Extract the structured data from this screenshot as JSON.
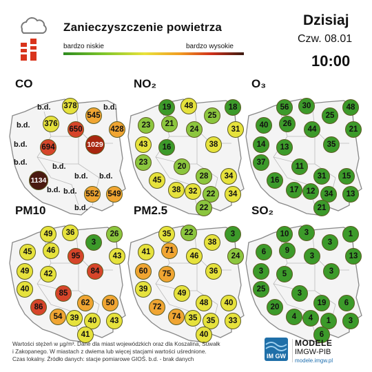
{
  "header": {
    "title": "Zanieczyszczenie powietrza",
    "scale_low": "bardzo niskie",
    "scale_high": "bardzo wysokie",
    "today": "Dzisiaj",
    "date": "Czw. 08.01",
    "time": "10:00"
  },
  "panels": [
    {
      "key": "co",
      "title": "CO",
      "stations": [
        {
          "id": "szczecin",
          "value": "b.d."
        },
        {
          "id": "koszalin",
          "value": "b.d."
        },
        {
          "id": "gdansk",
          "value": "378"
        },
        {
          "id": "olsztyn",
          "value": "545"
        },
        {
          "id": "suwalki",
          "value": "b.d."
        },
        {
          "id": "bialystok",
          "value": "428"
        },
        {
          "id": "bydgoszcz",
          "value": "376"
        },
        {
          "id": "torun",
          "value": "650"
        },
        {
          "id": "gorzow",
          "value": "b.d."
        },
        {
          "id": "poznan",
          "value": "694"
        },
        {
          "id": "warszawa",
          "value": "1029"
        },
        {
          "id": "zielona",
          "value": "b.d."
        },
        {
          "id": "lodz",
          "value": "b.d."
        },
        {
          "id": "wroclaw",
          "value": "1134"
        },
        {
          "id": "opole",
          "value": "b.d."
        },
        {
          "id": "kielce",
          "value": "b.d."
        },
        {
          "id": "lublin",
          "value": "b.d."
        },
        {
          "id": "katowice",
          "value": "b.d."
        },
        {
          "id": "krakow",
          "value": "552"
        },
        {
          "id": "rzeszow",
          "value": "549"
        },
        {
          "id": "zakopane",
          "value": "b.d."
        }
      ]
    },
    {
      "key": "no2",
      "title": "NO₂",
      "stations": [
        {
          "id": "szczecin",
          "value": "23"
        },
        {
          "id": "koszalin",
          "value": "19"
        },
        {
          "id": "gdansk",
          "value": "48"
        },
        {
          "id": "olsztyn",
          "value": "25"
        },
        {
          "id": "suwalki",
          "value": "18"
        },
        {
          "id": "bialystok",
          "value": "31"
        },
        {
          "id": "bydgoszcz",
          "value": "21"
        },
        {
          "id": "torun",
          "value": "24"
        },
        {
          "id": "gorzow",
          "value": "43"
        },
        {
          "id": "poznan",
          "value": "16"
        },
        {
          "id": "warszawa",
          "value": "38"
        },
        {
          "id": "zielona",
          "value": "23"
        },
        {
          "id": "lodz",
          "value": "20"
        },
        {
          "id": "wroclaw",
          "value": "45"
        },
        {
          "id": "opole",
          "value": "38"
        },
        {
          "id": "kielce",
          "value": "28"
        },
        {
          "id": "lublin",
          "value": "34"
        },
        {
          "id": "katowice",
          "value": "32"
        },
        {
          "id": "krakow",
          "value": "22"
        },
        {
          "id": "rzeszow",
          "value": "34"
        },
        {
          "id": "zakopane",
          "value": "22"
        }
      ]
    },
    {
      "key": "o3",
      "title": "O₃",
      "stations": [
        {
          "id": "szczecin",
          "value": "40"
        },
        {
          "id": "koszalin",
          "value": "56"
        },
        {
          "id": "gdansk",
          "value": "30"
        },
        {
          "id": "olsztyn",
          "value": "25"
        },
        {
          "id": "suwalki",
          "value": "48"
        },
        {
          "id": "bialystok",
          "value": "21"
        },
        {
          "id": "bydgoszcz",
          "value": "26"
        },
        {
          "id": "torun",
          "value": "44"
        },
        {
          "id": "gorzow",
          "value": "14"
        },
        {
          "id": "poznan",
          "value": "13"
        },
        {
          "id": "warszawa",
          "value": "35"
        },
        {
          "id": "zielona",
          "value": "37"
        },
        {
          "id": "lodz",
          "value": "11"
        },
        {
          "id": "wroclaw",
          "value": "16"
        },
        {
          "id": "opole",
          "value": "17"
        },
        {
          "id": "kielce",
          "value": "31"
        },
        {
          "id": "lublin",
          "value": "15"
        },
        {
          "id": "katowice",
          "value": "12"
        },
        {
          "id": "krakow",
          "value": "34"
        },
        {
          "id": "rzeszow",
          "value": "13"
        },
        {
          "id": "zakopane",
          "value": "21"
        }
      ]
    },
    {
      "key": "pm10",
      "title": "PM10",
      "stations": [
        {
          "id": "szczecin",
          "value": "45"
        },
        {
          "id": "koszalin",
          "value": "49"
        },
        {
          "id": "gdansk",
          "value": "36"
        },
        {
          "id": "olsztyn",
          "value": "3"
        },
        {
          "id": "suwalki",
          "value": "26"
        },
        {
          "id": "bialystok",
          "value": "43"
        },
        {
          "id": "bydgoszcz",
          "value": "46"
        },
        {
          "id": "torun",
          "value": "95"
        },
        {
          "id": "gorzow",
          "value": "49"
        },
        {
          "id": "poznan",
          "value": "42"
        },
        {
          "id": "warszawa",
          "value": "84"
        },
        {
          "id": "zielona",
          "value": "40"
        },
        {
          "id": "lodz",
          "value": "85"
        },
        {
          "id": "wroclaw",
          "value": "86"
        },
        {
          "id": "opole",
          "value": "54"
        },
        {
          "id": "kielce",
          "value": "62"
        },
        {
          "id": "lublin",
          "value": "50"
        },
        {
          "id": "katowice",
          "value": "39"
        },
        {
          "id": "krakow",
          "value": "40"
        },
        {
          "id": "rzeszow",
          "value": "43"
        },
        {
          "id": "zakopane",
          "value": "41"
        }
      ]
    },
    {
      "key": "pm25",
      "title": "PM2.5",
      "stations": [
        {
          "id": "szczecin",
          "value": "41"
        },
        {
          "id": "koszalin",
          "value": "35"
        },
        {
          "id": "gdansk",
          "value": "22"
        },
        {
          "id": "olsztyn",
          "value": "38"
        },
        {
          "id": "suwalki",
          "value": "3"
        },
        {
          "id": "bialystok",
          "value": "24"
        },
        {
          "id": "bydgoszcz",
          "value": "71"
        },
        {
          "id": "torun",
          "value": "46"
        },
        {
          "id": "gorzow",
          "value": "60"
        },
        {
          "id": "poznan",
          "value": "75"
        },
        {
          "id": "warszawa",
          "value": "36"
        },
        {
          "id": "zielona",
          "value": "39"
        },
        {
          "id": "lodz",
          "value": "49"
        },
        {
          "id": "wroclaw",
          "value": "72"
        },
        {
          "id": "opole",
          "value": "74"
        },
        {
          "id": "kielce",
          "value": "48"
        },
        {
          "id": "lublin",
          "value": "40"
        },
        {
          "id": "katowice",
          "value": "35"
        },
        {
          "id": "krakow",
          "value": "35"
        },
        {
          "id": "rzeszow",
          "value": "33"
        },
        {
          "id": "zakopane",
          "value": "40"
        }
      ]
    },
    {
      "key": "so2",
      "title": "SO₂",
      "stations": [
        {
          "id": "szczecin",
          "value": "6"
        },
        {
          "id": "koszalin",
          "value": "10"
        },
        {
          "id": "gdansk",
          "value": "3"
        },
        {
          "id": "olsztyn",
          "value": "3"
        },
        {
          "id": "suwalki",
          "value": "1"
        },
        {
          "id": "bialystok",
          "value": "13"
        },
        {
          "id": "bydgoszcz",
          "value": "9"
        },
        {
          "id": "torun",
          "value": "3"
        },
        {
          "id": "gorzow",
          "value": "3"
        },
        {
          "id": "poznan",
          "value": "5"
        },
        {
          "id": "warszawa",
          "value": "3"
        },
        {
          "id": "zielona",
          "value": "25"
        },
        {
          "id": "lodz",
          "value": "3"
        },
        {
          "id": "wroclaw",
          "value": "20"
        },
        {
          "id": "opole",
          "value": "4"
        },
        {
          "id": "kielce",
          "value": "19"
        },
        {
          "id": "lublin",
          "value": "6"
        },
        {
          "id": "katowice",
          "value": "4"
        },
        {
          "id": "krakow",
          "value": "1"
        },
        {
          "id": "rzeszow",
          "value": "3"
        },
        {
          "id": "zakopane",
          "value": "6"
        }
      ]
    }
  ],
  "footer": {
    "note_1": "Wartości stężeń w µg/m³. Dane dla miast wojewódzkich oraz dla Koszalina, Suwałk",
    "note_2": "i Zakopanego. W miastach z dwiema lub więcej stacjami wartości uśrednione.",
    "note_3": "Czas lokalny. Źródło danych: stacje pomiarowe GIOŚ.  b.d. - brak danych"
  },
  "logo": {
    "name": "MODELE",
    "sub": "IMGW-PIB",
    "url": "modele.imgw.pl",
    "badge": "IM GW"
  },
  "colors": {
    "very_low": "#3c9a2a",
    "low": "#8cc63e",
    "moderate": "#e6e23c",
    "elevated": "#f0a532",
    "high": "#d6452a",
    "very_high": "#a8260f",
    "extreme": "#4a1a10"
  }
}
